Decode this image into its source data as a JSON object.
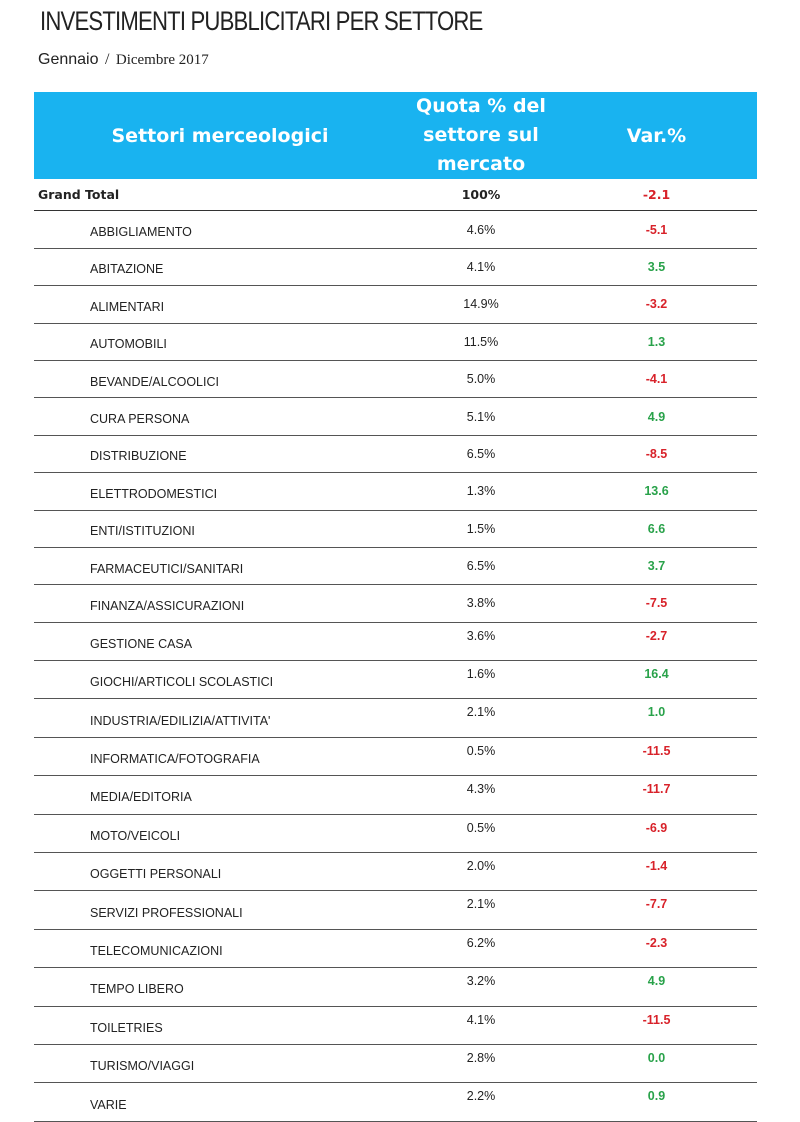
{
  "header": {
    "title": "INVESTIMENTI PUBBLICITARI PER SETTORE",
    "period_start": "Gennaio",
    "period_sep": "/",
    "period_end": "Dicembre 2017"
  },
  "table": {
    "columns": {
      "sector": "Settori merceologici",
      "share_line1": "Quota % del",
      "share_line2": "settore sul",
      "share_line3": "mercato",
      "var": "Var.%"
    },
    "total": {
      "label": "Grand Total",
      "share": "100%",
      "var": "-2.1"
    },
    "rows": [
      {
        "sector": "ABBIGLIAMENTO",
        "share": "4.6%",
        "var": "-5.1"
      },
      {
        "sector": "ABITAZIONE",
        "share": "4.1%",
        "var": "3.5"
      },
      {
        "sector": "ALIMENTARI",
        "share": "14.9%",
        "var": "-3.2"
      },
      {
        "sector": "AUTOMOBILI",
        "share": "11.5%",
        "var": "1.3"
      },
      {
        "sector": "BEVANDE/ALCOOLICI",
        "share": "5.0%",
        "var": "-4.1"
      },
      {
        "sector": "CURA PERSONA",
        "share": "5.1%",
        "var": "4.9"
      },
      {
        "sector": "DISTRIBUZIONE",
        "share": "6.5%",
        "var": "-8.5"
      },
      {
        "sector": "ELETTRODOMESTICI",
        "share": "1.3%",
        "var": "13.6"
      },
      {
        "sector": "ENTI/ISTITUZIONI",
        "share": "1.5%",
        "var": "6.6"
      },
      {
        "sector": "FARMACEUTICI/SANITARI",
        "share": "6.5%",
        "var": "3.7"
      },
      {
        "sector": "FINANZA/ASSICURAZIONI",
        "share": "3.8%",
        "var": "-7.5"
      },
      {
        "sector": "GESTIONE CASA",
        "share": "3.6%",
        "var": "-2.7"
      },
      {
        "sector": "GIOCHI/ARTICOLI SCOLASTICI",
        "share": "1.6%",
        "var": "16.4"
      },
      {
        "sector": "INDUSTRIA/EDILIZIA/ATTIVITA'",
        "share": "2.1%",
        "var": "1.0"
      },
      {
        "sector": "INFORMATICA/FOTOGRAFIA",
        "share": "0.5%",
        "var": "-11.5"
      },
      {
        "sector": "MEDIA/EDITORIA",
        "share": "4.3%",
        "var": "-11.7"
      },
      {
        "sector": "MOTO/VEICOLI",
        "share": "0.5%",
        "var": "-6.9"
      },
      {
        "sector": "OGGETTI PERSONALI",
        "share": "2.0%",
        "var": "-1.4"
      },
      {
        "sector": "SERVIZI PROFESSIONALI",
        "share": "2.1%",
        "var": "-7.7"
      },
      {
        "sector": "TELECOMUNICAZIONI",
        "share": "6.2%",
        "var": "-2.3"
      },
      {
        "sector": "TEMPO LIBERO",
        "share": "3.2%",
        "var": "4.9"
      },
      {
        "sector": "TOILETRIES",
        "share": "4.1%",
        "var": "-11.5"
      },
      {
        "sector": "TURISMO/VIAGGI",
        "share": "2.8%",
        "var": "0.0"
      },
      {
        "sector": "VARIE",
        "share": "2.2%",
        "var": "0.9"
      }
    ]
  },
  "colors": {
    "header_bg": "#19b3f0",
    "negative": "#d8222a",
    "positive": "#29a24a"
  }
}
